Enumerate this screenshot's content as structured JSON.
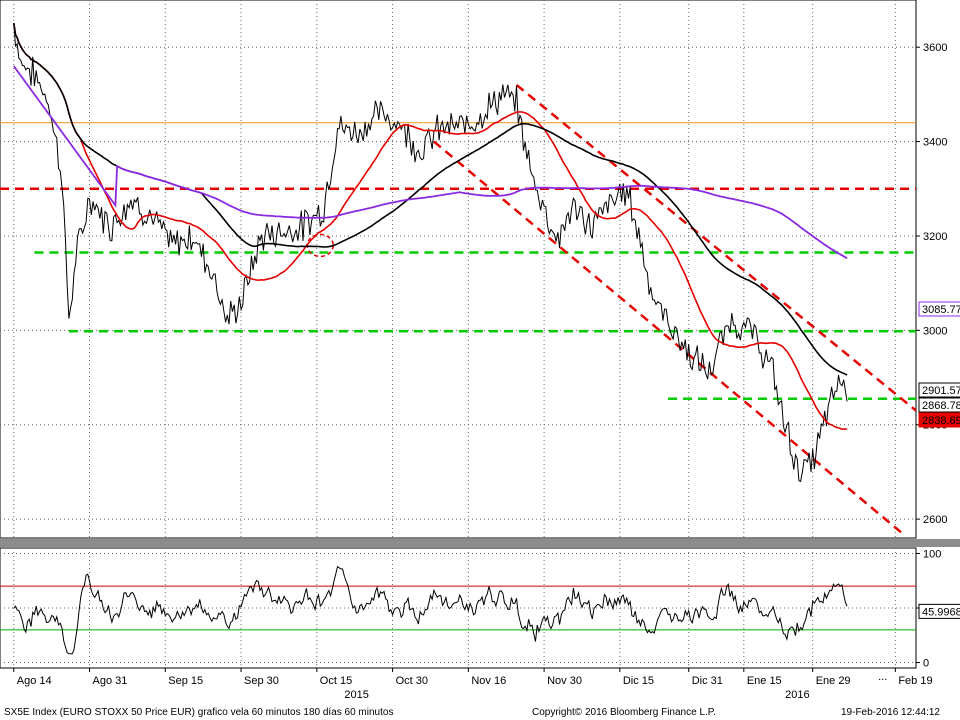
{
  "chart_data": [
    {
      "type": "line",
      "panel": "price",
      "y_ticks": [
        2600,
        2800,
        3000,
        3200,
        3400,
        3600
      ],
      "ylim": [
        2560,
        3700
      ],
      "grid": true,
      "series": [],
      "x_nodes": [
        {
          "day": 0,
          "v": 3650
        },
        {
          "day": 1,
          "v": 3570
        },
        {
          "day": 3,
          "v": 3540
        },
        {
          "day": 5,
          "v": 3490
        },
        {
          "day": 7,
          "v": 3330
        },
        {
          "day": 8,
          "v": 3020
        },
        {
          "day": 9,
          "v": 3150
        },
        {
          "day": 11,
          "v": 3280
        },
        {
          "day": 14,
          "v": 3220
        },
        {
          "day": 17,
          "v": 3280
        },
        {
          "day": 20,
          "v": 3240
        },
        {
          "day": 23,
          "v": 3180
        },
        {
          "day": 26,
          "v": 3200
        },
        {
          "day": 29,
          "v": 3120
        },
        {
          "day": 31,
          "v": 3020
        },
        {
          "day": 33,
          "v": 3060
        },
        {
          "day": 36,
          "v": 3200
        },
        {
          "day": 39,
          "v": 3210
        },
        {
          "day": 42,
          "v": 3220
        },
        {
          "day": 45,
          "v": 3260
        },
        {
          "day": 47,
          "v": 3430
        },
        {
          "day": 50,
          "v": 3420
        },
        {
          "day": 53,
          "v": 3460
        },
        {
          "day": 56,
          "v": 3440
        },
        {
          "day": 59,
          "v": 3380
        },
        {
          "day": 62,
          "v": 3430
        },
        {
          "day": 65,
          "v": 3430
        },
        {
          "day": 68,
          "v": 3460
        },
        {
          "day": 71,
          "v": 3500
        },
        {
          "day": 73,
          "v": 3480
        },
        {
          "day": 75,
          "v": 3340
        },
        {
          "day": 77,
          "v": 3260
        },
        {
          "day": 79,
          "v": 3190
        },
        {
          "day": 81,
          "v": 3260
        },
        {
          "day": 84,
          "v": 3220
        },
        {
          "day": 86,
          "v": 3260
        },
        {
          "day": 89,
          "v": 3300
        },
        {
          "day": 91,
          "v": 3190
        },
        {
          "day": 93,
          "v": 3060
        },
        {
          "day": 95,
          "v": 3020
        },
        {
          "day": 98,
          "v": 2950
        },
        {
          "day": 101,
          "v": 2910
        },
        {
          "day": 104,
          "v": 3020
        },
        {
          "day": 107,
          "v": 3000
        },
        {
          "day": 110,
          "v": 2920
        },
        {
          "day": 112,
          "v": 2800
        },
        {
          "day": 114,
          "v": 2700
        },
        {
          "day": 116,
          "v": 2720
        },
        {
          "day": 118,
          "v": 2820
        },
        {
          "day": 120,
          "v": 2900
        },
        {
          "day": 121,
          "v": 2870
        }
      ],
      "last_values_labels": [
        "3085.77",
        "2901.57",
        "2868.78",
        "2838.69"
      ],
      "colors": {
        "price": "#000000",
        "ma_short": "#e60000",
        "ma_mid": "#000000",
        "ma_long": "#8a2be2",
        "support_green": "#00cc00",
        "resistance_red": "#e60000",
        "orange_line": "#f0a030"
      }
    },
    {
      "type": "line",
      "panel": "rsi",
      "y_ticks": [
        0,
        50,
        100
      ],
      "ylim": [
        -5,
        105
      ],
      "reference_lines": [
        70,
        30
      ],
      "last_value_label": "45.9968",
      "colors": {
        "rsi": "#000000",
        "overbought": "#cc0000",
        "oversold": "#00aa00",
        "fill_over": "#f3a6a6",
        "fill_under": "#9be39b"
      }
    }
  ],
  "x_axis": {
    "ticks": [
      {
        "label": "Ago 14",
        "day": 0
      },
      {
        "label": "Ago 31",
        "day": 11
      },
      {
        "label": "Sep 15",
        "day": 22
      },
      {
        "label": "Sep 30",
        "day": 33
      },
      {
        "label": "Oct 15",
        "day": 44
      },
      {
        "label": "Oct 30",
        "day": 55
      },
      {
        "label": "Nov 16",
        "day": 66
      },
      {
        "label": "Nov 30",
        "day": 77
      },
      {
        "label": "Dic 15",
        "day": 88
      },
      {
        "label": "Dic 31",
        "day": 98
      },
      {
        "label": "Ene 15",
        "day": 106
      },
      {
        "label": "Ene 29",
        "day": 116
      },
      {
        "label": "Feb 19",
        "day": 128
      }
    ],
    "year_labels": [
      {
        "label": "2015",
        "day": 48
      },
      {
        "label": "2016",
        "day": 112
      }
    ],
    "ellipsis_label": "..."
  },
  "footer": {
    "left": "SX5E Index (EURO STOXX 50 Price EUR) grafico vela 60 minutos 180 días 60 minutos",
    "center": "Copyright© 2016 Bloomberg Finance L.P.",
    "right": "19-Feb-2016 12:44:12"
  }
}
